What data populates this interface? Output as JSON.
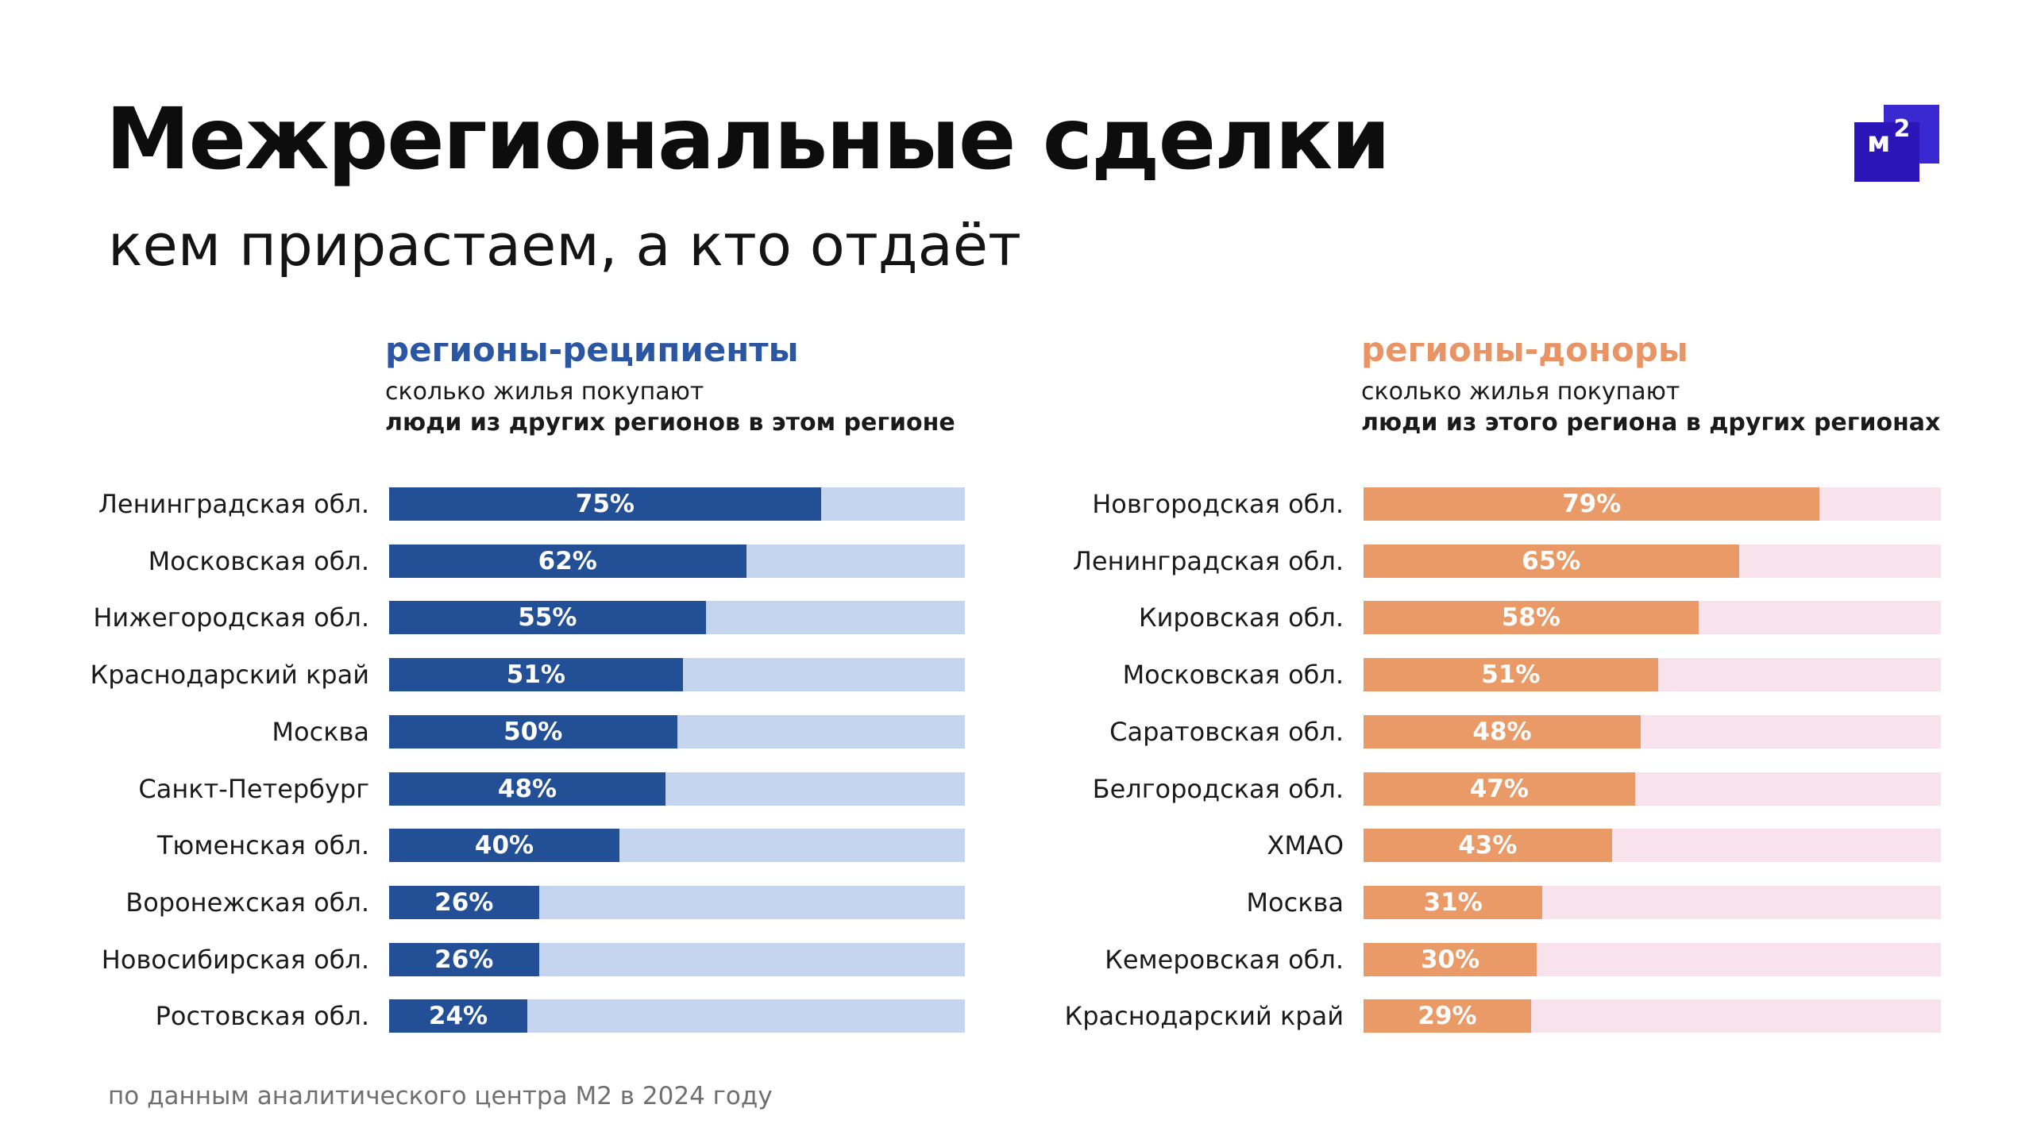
{
  "header": {
    "title": "Межрегиональные сделки",
    "subtitle": "кем прирастаем, а кто отдаёт"
  },
  "logo": {
    "letter": "м",
    "superscript": "2",
    "color": "#2c15b8"
  },
  "left_panel": {
    "heading": "регионы-реципиенты",
    "desc_line1": "сколько жилья покупают",
    "desc_line2": "люди из других регионов в этом регионе",
    "accent": "#234f96",
    "track": "#c5d5ef"
  },
  "right_panel": {
    "heading": "регионы-доноры",
    "desc_line1": "сколько жилья покупают",
    "desc_line2": "люди из этого региона в других регионах",
    "accent": "#ea9a67",
    "track": "#f8e2ec"
  },
  "footer": {
    "source": "по данным аналитического центра М2 в 2024 году"
  },
  "chart_data": [
    {
      "type": "bar",
      "orientation": "horizontal",
      "title": "регионы-реципиенты",
      "xlim": [
        0,
        100
      ],
      "grid": false,
      "categories": [
        "Ленинградская обл.",
        "Московская обл.",
        "Нижегородская обл.",
        "Краснодарский край",
        "Москва",
        "Санкт-Петербург",
        "Тюменская обл.",
        "Воронежская обл.",
        "Новосибирская обл.",
        "Ростовская обл."
      ],
      "values": [
        75,
        62,
        55,
        51,
        50,
        48,
        40,
        26,
        26,
        24
      ],
      "value_labels": [
        "75%",
        "62%",
        "55%",
        "51%",
        "50%",
        "48%",
        "40%",
        "26%",
        "26%",
        "24%"
      ]
    },
    {
      "type": "bar",
      "orientation": "horizontal",
      "title": "регионы-доноры",
      "xlim": [
        0,
        100
      ],
      "grid": false,
      "categories": [
        "Новгородская обл.",
        "Ленинградская обл.",
        "Кировская обл.",
        "Московская обл.",
        "Саратовская обл.",
        "Белгородская обл.",
        "ХМАО",
        "Москва",
        "Кемеровская обл.",
        "Краснодарский край"
      ],
      "values": [
        79,
        65,
        58,
        51,
        48,
        47,
        43,
        31,
        30,
        29
      ],
      "value_labels": [
        "79%",
        "65%",
        "58%",
        "51%",
        "48%",
        "47%",
        "43%",
        "31%",
        "30%",
        "29%"
      ]
    }
  ]
}
